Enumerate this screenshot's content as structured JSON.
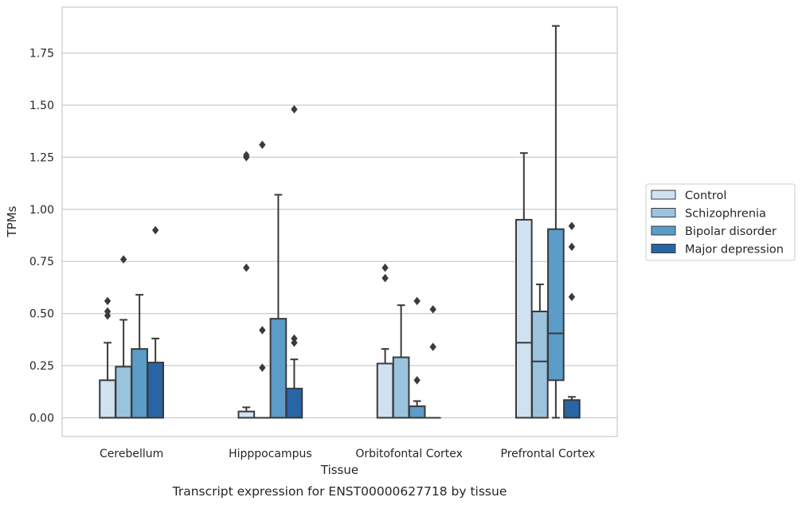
{
  "chart_data": {
    "type": "boxplot",
    "caption": "Transcript expression for ENST00000627718 by tissue",
    "xlabel": "Tissue",
    "ylabel": "TPMs",
    "ylim": [
      -0.09,
      1.97
    ],
    "yticks": [
      0.0,
      0.25,
      0.5,
      0.75,
      1.0,
      1.25,
      1.5,
      1.75
    ],
    "ytick_labels": [
      "0.00",
      "0.25",
      "0.50",
      "0.75",
      "1.00",
      "1.25",
      "1.50",
      "1.75"
    ],
    "grid": "horizontal",
    "legend_position": "right",
    "categories": [
      "Cerebellum",
      "Hipppocampus",
      "Orbitofontal Cortex",
      "Prefrontal Cortex"
    ],
    "series": [
      {
        "name": "Control",
        "color": "#d0e1f2",
        "boxes": [
          {
            "whisker_low": 0.0,
            "q1": 0.0,
            "median": 0.0,
            "q3": 0.18,
            "whisker_high": 0.36,
            "outliers": [
              0.49,
              0.51,
              0.56
            ]
          },
          {
            "whisker_low": 0.0,
            "q1": 0.0,
            "median": 0.0,
            "q3": 0.03,
            "whisker_high": 0.05,
            "outliers": [
              0.72,
              1.25,
              1.26
            ]
          },
          {
            "whisker_low": 0.0,
            "q1": 0.0,
            "median": 0.0,
            "q3": 0.26,
            "whisker_high": 0.33,
            "outliers": [
              0.67,
              0.72
            ]
          },
          {
            "whisker_low": 0.0,
            "q1": 0.0,
            "median": 0.36,
            "q3": 0.95,
            "whisker_high": 1.27,
            "outliers": []
          }
        ]
      },
      {
        "name": "Schizophrenia",
        "color": "#9ac3dd",
        "boxes": [
          {
            "whisker_low": 0.0,
            "q1": 0.0,
            "median": 0.0,
            "q3": 0.245,
            "whisker_high": 0.47,
            "outliers": [
              0.76
            ]
          },
          {
            "whisker_low": 0.0,
            "q1": 0.0,
            "median": 0.0,
            "q3": 0.0,
            "whisker_high": 0.0,
            "outliers": [
              0.24,
              0.42,
              1.31
            ]
          },
          {
            "whisker_low": 0.0,
            "q1": 0.0,
            "median": 0.0,
            "q3": 0.29,
            "whisker_high": 0.54,
            "outliers": []
          },
          {
            "whisker_low": 0.0,
            "q1": 0.0,
            "median": 0.27,
            "q3": 0.51,
            "whisker_high": 0.64,
            "outliers": []
          }
        ]
      },
      {
        "name": "Bipolar disorder",
        "color": "#5b9cc9",
        "boxes": [
          {
            "whisker_low": 0.0,
            "q1": 0.0,
            "median": 0.0,
            "q3": 0.33,
            "whisker_high": 0.59,
            "outliers": []
          },
          {
            "whisker_low": 0.0,
            "q1": 0.0,
            "median": 0.0,
            "q3": 0.475,
            "whisker_high": 1.07,
            "outliers": []
          },
          {
            "whisker_low": 0.0,
            "q1": 0.0,
            "median": 0.0,
            "q3": 0.055,
            "whisker_high": 0.08,
            "outliers": [
              0.18,
              0.56
            ]
          },
          {
            "whisker_low": 0.0,
            "q1": 0.18,
            "median": 0.405,
            "q3": 0.905,
            "whisker_high": 1.88,
            "outliers": []
          }
        ]
      },
      {
        "name": "Major depression",
        "color": "#2865a5",
        "boxes": [
          {
            "whisker_low": 0.0,
            "q1": 0.0,
            "median": 0.0,
            "q3": 0.265,
            "whisker_high": 0.38,
            "outliers": [
              0.9
            ]
          },
          {
            "whisker_low": 0.0,
            "q1": 0.0,
            "median": 0.0,
            "q3": 0.14,
            "whisker_high": 0.28,
            "outliers": [
              0.36,
              0.38,
              1.48
            ]
          },
          {
            "whisker_low": 0.0,
            "q1": 0.0,
            "median": 0.0,
            "q3": 0.0,
            "whisker_high": 0.0,
            "outliers": [
              0.34,
              0.52
            ]
          },
          {
            "whisker_low": 0.0,
            "q1": 0.0,
            "median": 0.0,
            "q3": 0.085,
            "whisker_high": 0.1,
            "outliers": [
              0.58,
              0.82,
              0.92
            ]
          }
        ]
      }
    ]
  }
}
